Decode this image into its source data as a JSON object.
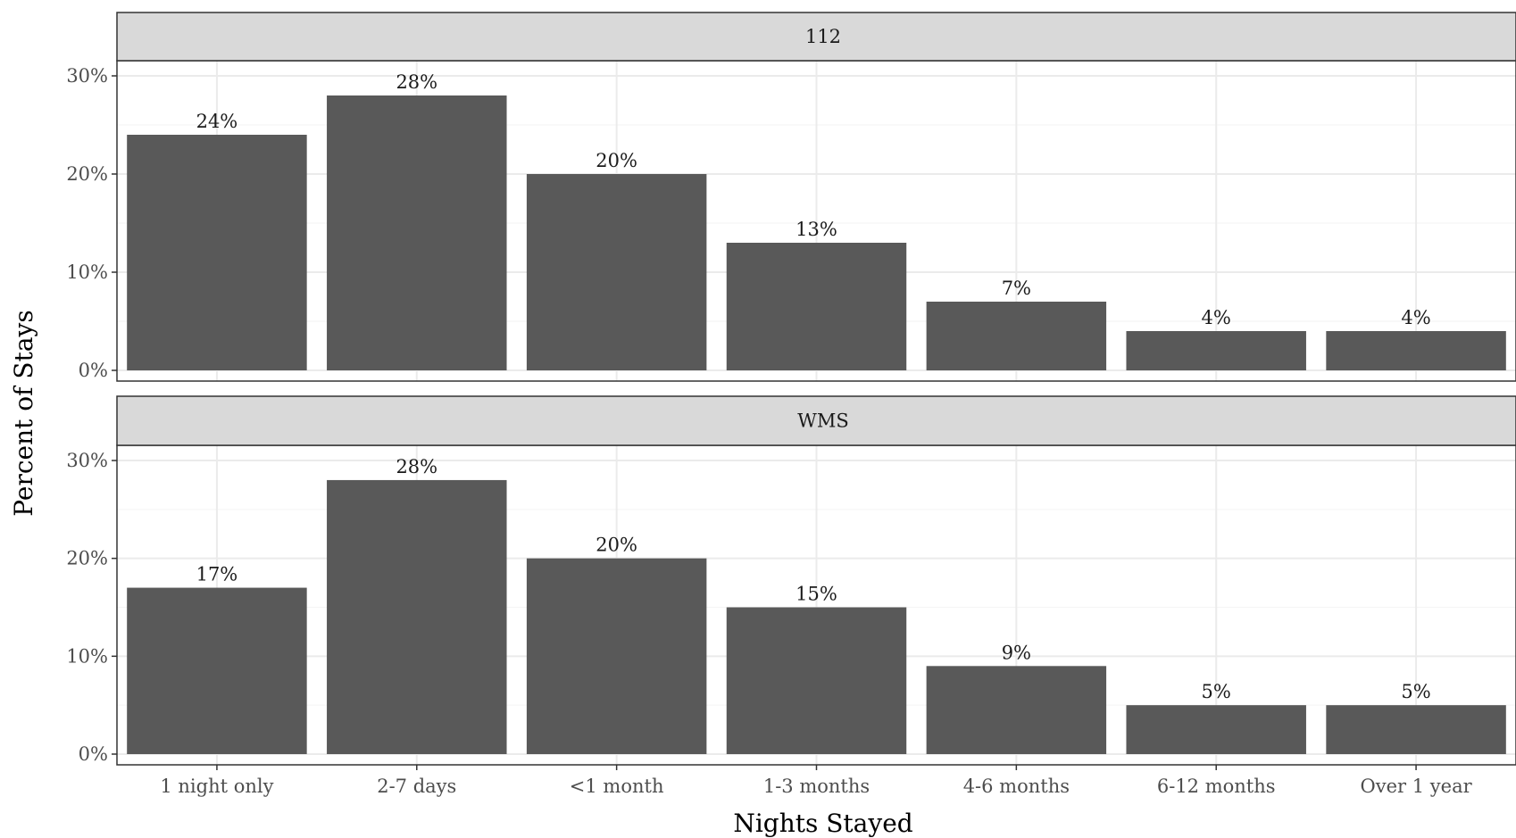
{
  "chart_data": {
    "type": "bar",
    "xlabel": "Nights Stayed",
    "ylabel": "Percent of Stays",
    "ylim": [
      0,
      32
    ],
    "yticks": [
      0,
      10,
      20,
      30
    ],
    "ytick_labels": [
      "0%",
      "10%",
      "20%",
      "30%"
    ],
    "grid": true,
    "categories": [
      "1 night only",
      "2-7 days",
      "<1 month",
      "1-3 months",
      "4-6 months",
      "6-12 months",
      "Over 1 year"
    ],
    "panels": [
      {
        "name": "112",
        "values": [
          24,
          28,
          20,
          13,
          7,
          4,
          4
        ],
        "labels": [
          "24%",
          "28%",
          "20%",
          "13%",
          "7%",
          "4%",
          "4%"
        ]
      },
      {
        "name": "WMS",
        "values": [
          17,
          28,
          20,
          15,
          9,
          5,
          5
        ],
        "labels": [
          "17%",
          "28%",
          "20%",
          "15%",
          "9%",
          "5%",
          "5%"
        ]
      }
    ],
    "colors": {
      "bar": "#595959",
      "strip": "#d9d9d9",
      "grid_major": "#ebebeb",
      "grid_minor": "#f5f5f5",
      "border": "#333333"
    }
  }
}
